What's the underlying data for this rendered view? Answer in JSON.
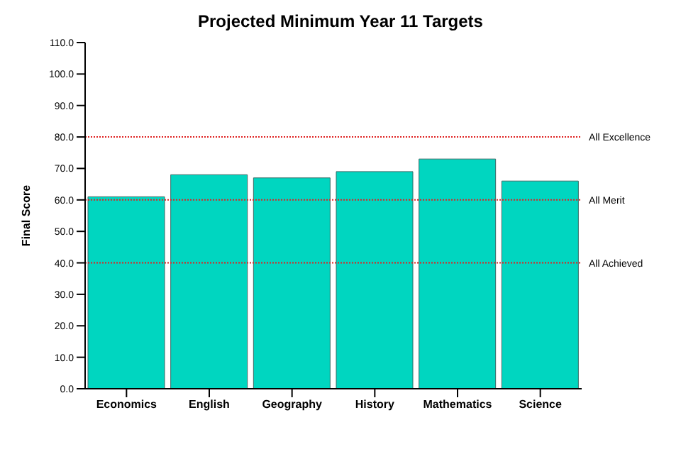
{
  "chart_data": {
    "type": "bar",
    "title": "Projected Minimum Year 11 Targets",
    "ylabel": "Final Score",
    "categories": [
      "Economics",
      "English",
      "Geography",
      "History",
      "Mathematics",
      "Science"
    ],
    "values": [
      61,
      68,
      67,
      69,
      73,
      66
    ],
    "color": "#00d6c0",
    "ylim": [
      0,
      110
    ],
    "yticks": [
      {
        "value": 0,
        "label": "0.0"
      },
      {
        "value": 10,
        "label": "10.0"
      },
      {
        "value": 20,
        "label": "20.0"
      },
      {
        "value": 30,
        "label": "30.0"
      },
      {
        "value": 40,
        "label": "40.0"
      },
      {
        "value": 50,
        "label": "50.0"
      },
      {
        "value": 60,
        "label": "60.0"
      },
      {
        "value": 70,
        "label": "70.0"
      },
      {
        "value": 80,
        "label": "80.0"
      },
      {
        "value": 90,
        "label": "90.0"
      },
      {
        "value": 100,
        "label": "100.0"
      },
      {
        "value": 110,
        "label": "110.0"
      }
    ],
    "ref_lines": [
      {
        "axis": "y",
        "value": 80,
        "label": "All Excellence",
        "color": "#e02020",
        "line_style": "dotted"
      },
      {
        "axis": "y",
        "value": 60,
        "label": "All Merit",
        "color": "#e02020",
        "line_style": "dotted"
      },
      {
        "axis": "y",
        "value": 40,
        "label": "All Achieved",
        "color": "#e02020",
        "line_style": "dotted"
      }
    ],
    "grid": false,
    "legend": false
  }
}
